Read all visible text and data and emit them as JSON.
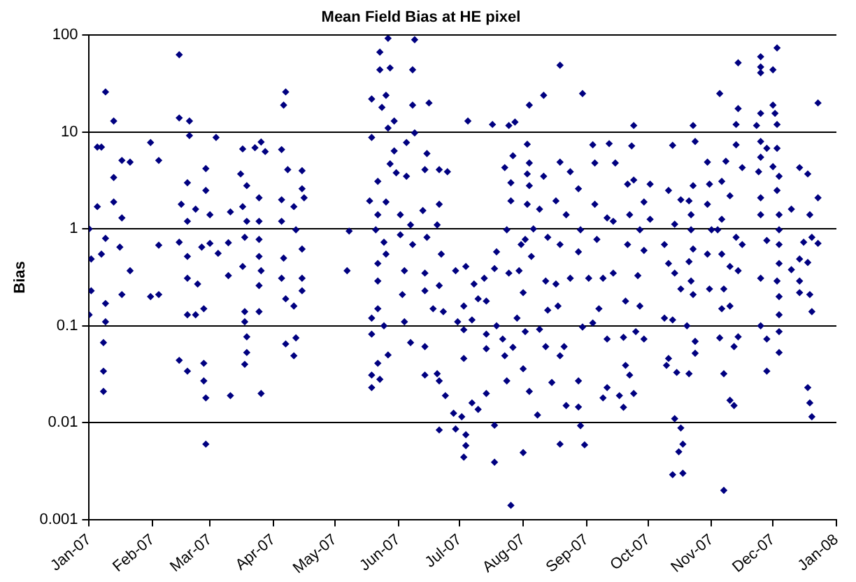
{
  "chart_data": {
    "type": "scatter",
    "title": "Mean Field Bias at HE pixel",
    "ylabel": "Bias",
    "log": "y",
    "grid": "y",
    "legend": false,
    "marker": "diamond",
    "xlim": [
      "2007-01-01",
      "2008-01-01"
    ],
    "xticks": [
      {
        "value": "2007-01-01",
        "label": "Jan-07"
      },
      {
        "value": "2007-02-01",
        "label": "Feb-07"
      },
      {
        "value": "2007-03-01",
        "label": "Mar-07"
      },
      {
        "value": "2007-04-01",
        "label": "Apr-07"
      },
      {
        "value": "2007-05-01",
        "label": "May-07"
      },
      {
        "value": "2007-06-01",
        "label": "Jun-07"
      },
      {
        "value": "2007-07-01",
        "label": "Jul-07"
      },
      {
        "value": "2007-08-01",
        "label": "Aug-07"
      },
      {
        "value": "2007-09-01",
        "label": "Sep-07"
      },
      {
        "value": "2007-10-01",
        "label": "Oct-07"
      },
      {
        "value": "2007-11-01",
        "label": "Nov-07"
      },
      {
        "value": "2007-12-01",
        "label": "Dec-07"
      },
      {
        "value": "2008-01-01",
        "label": "Jan-08"
      }
    ],
    "ylim": [
      0.001,
      100
    ],
    "yticks": [
      0.001,
      0.01,
      0.1,
      1,
      10,
      100
    ],
    "series": [
      {
        "color": "#000080",
        "x": [
          "2007-01-09",
          "2007-01-13",
          "2007-01-05",
          "2007-01-07",
          "2007-01-13",
          "2007-01-05",
          "2007-01-01",
          "2007-01-02",
          "2007-01-02",
          "2007-01-01",
          "2007-01-09",
          "2007-01-07",
          "2007-01-09",
          "2007-01-09",
          "2007-01-08",
          "2007-01-08",
          "2007-01-08",
          "2007-01-13",
          "2007-01-17",
          "2007-01-16",
          "2007-01-17",
          "2007-01-17",
          "2007-01-21",
          "2007-01-21",
          "2007-01-31",
          "2007-02-04",
          "2007-02-04",
          "2007-01-31",
          "2007-02-04",
          "2007-02-14",
          "2007-02-14",
          "2007-02-19",
          "2007-02-19",
          "2007-02-18",
          "2007-02-15",
          "2007-02-18",
          "2007-02-22",
          "2007-02-27",
          "2007-02-27",
          "2007-03-01",
          "2007-03-04",
          "2007-02-14",
          "2007-02-18",
          "2007-02-18",
          "2007-02-18",
          "2007-02-22",
          "2007-02-26",
          "2007-02-23",
          "2007-02-25",
          "2007-03-01",
          "2007-02-14",
          "2007-02-18",
          "2007-02-26",
          "2007-02-26",
          "2007-02-27",
          "2007-02-27",
          "2007-03-11",
          "2007-03-05",
          "2007-03-10",
          "2007-03-10",
          "2007-03-11",
          "2007-03-17",
          "2007-03-16",
          "2007-03-19",
          "2007-03-17",
          "2007-03-19",
          "2007-03-18",
          "2007-03-17",
          "2007-03-18",
          "2007-03-18",
          "2007-03-19",
          "2007-03-19",
          "2007-03-18",
          "2007-03-23",
          "2007-03-26",
          "2007-03-28",
          "2007-03-25",
          "2007-03-25",
          "2007-03-25",
          "2007-03-25",
          "2007-03-26",
          "2007-03-25",
          "2007-03-25",
          "2007-03-26",
          "2007-04-07",
          "2007-04-06",
          "2007-04-05",
          "2007-04-08",
          "2007-04-05",
          "2007-04-05",
          "2007-04-06",
          "2007-04-05",
          "2007-04-07",
          "2007-04-07",
          "2007-04-12",
          "2007-04-11",
          "2007-04-15",
          "2007-04-15",
          "2007-04-16",
          "2007-04-11",
          "2007-04-12",
          "2007-04-15",
          "2007-04-15",
          "2007-04-15",
          "2007-04-11",
          "2007-05-07",
          "2007-05-08",
          "2007-05-27",
          "2007-06-09",
          "2007-05-23",
          "2007-05-23",
          "2007-05-28",
          "2007-06-08",
          "2007-05-19",
          "2007-05-26",
          "2007-05-24",
          "2007-06-08",
          "2007-06-16",
          "2007-05-30",
          "2007-05-27",
          "2007-05-19",
          "2007-06-09",
          "2007-06-05",
          "2007-05-30",
          "2007-06-15",
          "2007-05-28",
          "2007-05-31",
          "2007-06-05",
          "2007-06-14",
          "2007-06-21",
          "2007-06-25",
          "2007-05-22",
          "2007-05-18",
          "2007-05-26",
          "2007-05-22",
          "2007-05-21",
          "2007-05-25",
          "2007-05-26",
          "2007-05-22",
          "2007-05-22",
          "2007-06-02",
          "2007-06-02",
          "2007-06-07",
          "2007-06-08",
          "2007-06-04",
          "2007-06-03",
          "2007-06-13",
          "2007-06-15",
          "2007-06-21",
          "2007-06-20",
          "2007-06-22",
          "2007-06-14",
          "2007-06-14",
          "2007-06-18",
          "2007-06-23",
          "2007-06-21",
          "2007-05-19",
          "2007-05-22",
          "2007-05-19",
          "2007-05-25",
          "2007-05-27",
          "2007-05-22",
          "2007-05-19",
          "2007-05-23",
          "2007-05-19",
          "2007-06-04",
          "2007-06-07",
          "2007-06-14",
          "2007-06-14",
          "2007-06-20",
          "2007-06-21",
          "2007-06-24",
          "2007-06-21",
          "2007-06-28",
          "2007-06-29",
          "2007-07-02",
          "2007-07-04",
          "2007-07-04",
          "2007-07-03",
          "2007-07-03",
          "2007-07-07",
          "2007-07-10",
          "2007-07-14",
          "2007-07-18",
          "2007-07-18",
          "2007-07-26",
          "2007-07-05",
          "2007-06-29",
          "2007-07-04",
          "2007-07-03",
          "2007-07-03",
          "2007-06-30",
          "2007-07-07",
          "2007-07-08",
          "2007-07-10",
          "2007-07-14",
          "2007-07-13",
          "2007-07-19",
          "2007-07-14",
          "2007-07-14",
          "2007-07-19",
          "2007-07-22",
          "2007-07-23",
          "2007-07-17",
          "2007-07-25",
          "2007-07-28",
          "2007-08-04",
          "2007-08-11",
          "2007-08-19",
          "2007-08-30",
          "2007-08-03",
          "2007-07-27",
          "2007-07-23",
          "2007-08-04",
          "2007-08-03",
          "2007-07-26",
          "2007-08-04",
          "2007-08-11",
          "2007-08-19",
          "2007-08-24",
          "2007-07-26",
          "2007-08-03",
          "2007-08-09",
          "2007-08-17",
          "2007-08-22",
          "2007-07-24",
          "2007-08-06",
          "2007-08-13",
          "2007-08-19",
          "2007-07-31",
          "2007-08-02",
          "2007-07-18",
          "2007-07-25",
          "2007-07-30",
          "2007-08-05",
          "2007-08-12",
          "2007-08-17",
          "2007-08-24",
          "2007-08-01",
          "2007-08-13",
          "2007-08-18",
          "2007-07-29",
          "2007-08-02",
          "2007-08-09",
          "2007-07-27",
          "2007-08-12",
          "2007-08-21",
          "2007-08-01",
          "2007-08-04",
          "2007-08-08",
          "2007-07-24",
          "2007-08-01",
          "2007-08-19",
          "2007-08-15",
          "2007-08-22",
          "2007-08-28",
          "2007-08-19",
          "2007-08-31",
          "2007-08-29",
          "2007-08-28",
          "2007-08-30",
          "2007-08-28",
          "2007-08-29",
          "2007-09-04",
          "2007-09-12",
          "2007-09-05",
          "2007-09-15",
          "2007-08-28",
          "2007-09-05",
          "2007-09-11",
          "2007-09-14",
          "2007-09-06",
          "2007-09-02",
          "2007-09-09",
          "2007-09-14",
          "2007-09-07",
          "2007-09-11",
          "2007-09-09",
          "2007-09-04",
          "2007-09-24",
          "2007-09-23",
          "2007-09-21",
          "2007-09-24",
          "2007-10-02",
          "2007-09-29",
          "2007-09-22",
          "2007-10-02",
          "2007-09-27",
          "2007-09-21",
          "2007-09-29",
          "2007-09-26",
          "2007-09-20",
          "2007-09-27",
          "2007-09-25",
          "2007-09-29",
          "2007-09-19",
          "2007-09-20",
          "2007-09-22",
          "2007-09-17",
          "2007-09-19",
          "2007-09-24",
          "2007-09-11",
          "2007-10-13",
          "2007-10-11",
          "2007-10-17",
          "2007-10-14",
          "2007-10-09",
          "2007-10-11",
          "2007-10-14",
          "2007-10-17",
          "2007-10-09",
          "2007-10-13",
          "2007-10-11",
          "2007-10-10",
          "2007-10-15",
          "2007-10-21",
          "2007-10-14",
          "2007-10-17",
          "2007-10-18",
          "2007-10-16",
          "2007-10-13",
          "2007-10-18",
          "2007-10-23",
          "2007-10-24",
          "2007-10-23",
          "2007-10-21",
          "2007-10-22",
          "2007-10-22",
          "2007-10-23",
          "2007-10-21",
          "2007-10-22",
          "2007-10-23",
          "2007-10-20",
          "2007-10-24",
          "2007-10-24",
          "2007-10-30",
          "2007-10-31",
          "2007-10-30",
          "2007-11-01",
          "2007-10-30",
          "2007-10-31",
          "2007-11-05",
          "2007-11-08",
          "2007-11-06",
          "2007-11-10",
          "2007-11-06",
          "2007-11-04",
          "2007-11-06",
          "2007-11-07",
          "2007-11-06",
          "2007-11-10",
          "2007-11-10",
          "2007-11-05",
          "2007-11-07",
          "2007-11-10",
          "2007-11-12",
          "2007-11-07",
          "2007-11-14",
          "2007-11-14",
          "2007-11-13",
          "2007-11-13",
          "2007-11-16",
          "2007-11-13",
          "2007-11-16",
          "2007-11-14",
          "2007-11-12",
          "2007-11-14",
          "2007-11-25",
          "2007-11-25",
          "2007-11-25",
          "2007-12-01",
          "2007-12-03",
          "2007-11-25",
          "2007-11-23",
          "2007-12-01",
          "2007-12-02",
          "2007-12-03",
          "2007-11-25",
          "2007-11-28",
          "2007-11-25",
          "2007-12-03",
          "2007-12-01",
          "2007-11-24",
          "2007-12-04",
          "2007-11-25",
          "2007-11-25",
          "2007-12-03",
          "2007-12-04",
          "2007-12-04",
          "2007-12-04",
          "2007-11-28",
          "2007-12-04",
          "2007-11-25",
          "2007-12-03",
          "2007-12-04",
          "2007-11-25",
          "2007-11-28",
          "2007-12-04",
          "2007-12-04",
          "2007-12-04",
          "2007-11-28",
          "2007-12-14",
          "2007-12-18",
          "2007-12-10",
          "2007-12-23",
          "2007-12-23",
          "2007-12-19",
          "2007-12-20",
          "2007-12-16",
          "2007-12-23",
          "2007-12-14",
          "2007-12-18",
          "2007-12-10",
          "2007-12-14",
          "2007-12-14",
          "2007-12-19",
          "2007-12-20",
          "2007-12-18",
          "2007-12-19",
          "2007-12-20"
        ],
        "values": [
          26,
          13,
          7,
          7,
          3.4,
          1.7,
          1,
          0.49,
          0.23,
          0.13,
          0.8,
          0.55,
          0.17,
          0.11,
          0.067,
          0.034,
          0.021,
          1.9,
          1.3,
          0.65,
          0.21,
          5.1,
          4.9,
          0.37,
          7.8,
          5.1,
          0.68,
          0.2,
          0.21,
          63,
          14,
          13,
          9.2,
          3,
          1.8,
          1.2,
          1.6,
          4.2,
          2.5,
          1.4,
          8.8,
          0.73,
          0.52,
          0.31,
          0.13,
          0.13,
          0.15,
          0.27,
          0.65,
          0.71,
          0.044,
          0.034,
          0.041,
          0.027,
          0.018,
          0.006,
          0.019,
          0.56,
          0.72,
          0.33,
          1.5,
          6.7,
          3.7,
          2.8,
          1.7,
          1.2,
          0.82,
          0.41,
          0.14,
          0.11,
          0.077,
          0.053,
          0.04,
          6.9,
          7.9,
          6.3,
          2.1,
          1.2,
          0.78,
          0.52,
          0.37,
          0.26,
          0.14,
          0.02,
          26,
          19,
          6.6,
          4.1,
          2,
          1.2,
          0.5,
          0.31,
          0.19,
          0.065,
          0.075,
          0.049,
          4,
          2.6,
          2.1,
          1.7,
          0.98,
          0.62,
          0.31,
          0.23,
          0.16,
          0.37,
          0.95,
          93,
          90,
          67,
          44,
          46,
          44,
          22,
          24,
          18,
          19,
          20,
          13,
          11,
          8.8,
          9.8,
          7.8,
          6.4,
          6,
          4.7,
          3.8,
          3.5,
          4.1,
          4.1,
          3.9,
          3.1,
          1.95,
          1.9,
          1.4,
          0.98,
          0.73,
          0.55,
          0.44,
          0.29,
          1.4,
          0.87,
          1.1,
          0.69,
          0.37,
          0.21,
          1.55,
          0.82,
          1.8,
          1.1,
          0.55,
          0.35,
          0.23,
          0.15,
          0.14,
          0.26,
          0.12,
          0.15,
          0.082,
          0.1,
          0.05,
          0.041,
          0.031,
          0.028,
          0.023,
          0.11,
          0.067,
          0.061,
          0.031,
          0.032,
          0.027,
          0.019,
          0.0084,
          0.0125,
          0.0086,
          0.0115,
          0.0075,
          0.0058,
          0.0044,
          0.046,
          0.016,
          0.0137,
          0.02,
          0.0094,
          0.0039,
          0.0014,
          13,
          0.37,
          0.41,
          0.16,
          0.091,
          0.11,
          0.115,
          0.27,
          0.19,
          0.18,
          0.31,
          0.58,
          0.082,
          0.058,
          0.1,
          0.073,
          0.049,
          12,
          11.7,
          12.7,
          19,
          24,
          49,
          25,
          7.5,
          5.7,
          4.3,
          4.8,
          3.7,
          3,
          2.8,
          3.5,
          4.9,
          3.9,
          1.95,
          1.8,
          1.6,
          1.95,
          1.4,
          0.98,
          1,
          0.82,
          0.69,
          0.69,
          0.78,
          0.39,
          0.35,
          0.37,
          0.52,
          0.29,
          0.27,
          0.31,
          0.22,
          0.145,
          0.16,
          0.12,
          0.087,
          0.092,
          0.06,
          0.061,
          0.061,
          0.036,
          0.021,
          0.012,
          0.027,
          0.0049,
          0.049,
          0.026,
          0.015,
          0.0145,
          0.006,
          0.0059,
          0.0093,
          0.027,
          0.097,
          0.58,
          0.98,
          7.4,
          7.6,
          4.8,
          4.8,
          2.6,
          1.8,
          1.3,
          1.2,
          0.78,
          0.31,
          0.31,
          0.35,
          0.15,
          0.073,
          0.018,
          0.107,
          11.7,
          7.2,
          2.9,
          3.2,
          2.9,
          1.9,
          1.4,
          1.26,
          0.98,
          0.69,
          0.6,
          0.33,
          0.18,
          0.16,
          0.087,
          0.073,
          0.076,
          0.039,
          0.031,
          0.019,
          0.0144,
          0.02,
          0.023,
          7.3,
          2.5,
          2,
          1.12,
          0.69,
          0.44,
          0.35,
          0.24,
          0.12,
          0.115,
          0.046,
          0.039,
          0.033,
          0.032,
          0.011,
          0.0088,
          0.006,
          0.005,
          0.0029,
          0.003,
          11.7,
          8,
          2.8,
          1.95,
          1.4,
          0.98,
          0.62,
          0.46,
          0.29,
          0.21,
          0.1,
          0.069,
          0.052,
          1.8,
          2.9,
          4.9,
          0.98,
          0.55,
          0.24,
          25,
          5,
          3.1,
          2.2,
          1.26,
          0.98,
          0.55,
          0.24,
          0.15,
          0.16,
          0.41,
          0.075,
          0.032,
          0.017,
          0.015,
          0.002,
          52,
          17.5,
          12,
          7.4,
          4.3,
          0.82,
          0.69,
          0.37,
          0.061,
          0.077,
          60,
          47,
          41,
          44,
          74,
          15.6,
          11.7,
          19,
          15.6,
          12,
          8,
          6.8,
          5.5,
          6.8,
          4.4,
          3.9,
          3.5,
          2.1,
          1.4,
          2.5,
          1.4,
          0.98,
          0.69,
          0.76,
          0.44,
          0.31,
          0.29,
          0.2,
          0.1,
          0.073,
          0.13,
          0.087,
          0.053,
          0.034,
          4.3,
          3.7,
          1.6,
          2.1,
          20,
          1.4,
          0.82,
          0.73,
          0.71,
          0.49,
          0.45,
          0.38,
          0.29,
          0.22,
          0.21,
          0.14,
          0.023,
          0.016,
          0.0115
        ]
      }
    ]
  }
}
